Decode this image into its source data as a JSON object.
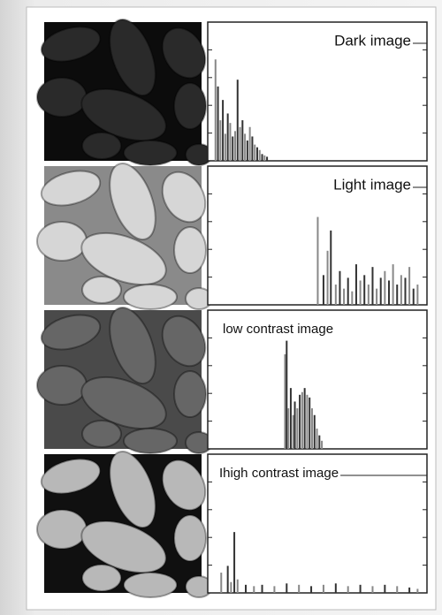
{
  "histograms": [
    {
      "label": "Dark image",
      "x": [
        3,
        6,
        9,
        12,
        15,
        18,
        21,
        24,
        27,
        30,
        33,
        36,
        39,
        42,
        45,
        48,
        51,
        54,
        57,
        60,
        63,
        66
      ],
      "values": [
        75,
        55,
        30,
        45,
        20,
        35,
        28,
        18,
        22,
        60,
        25,
        30,
        20,
        15,
        25,
        18,
        12,
        10,
        8,
        5,
        4,
        3
      ]
    },
    {
      "label": "Light image",
      "x": [
        128,
        135,
        140,
        144,
        150,
        155,
        160,
        165,
        170,
        175,
        180,
        185,
        190,
        195,
        200,
        205,
        210,
        215,
        220,
        225,
        230,
        235,
        240,
        245,
        250
      ],
      "values": [
        65,
        22,
        40,
        55,
        15,
        25,
        12,
        20,
        10,
        30,
        18,
        22,
        15,
        28,
        12,
        20,
        25,
        18,
        30,
        15,
        22,
        20,
        28,
        12,
        15
      ]
    },
    {
      "label": "low contrast image",
      "x": [
        88,
        90,
        92,
        95,
        98,
        100,
        103,
        106,
        109,
        112,
        115,
        118,
        121,
        124,
        127,
        130,
        133
      ],
      "values": [
        70,
        80,
        30,
        45,
        25,
        35,
        30,
        40,
        42,
        45,
        40,
        38,
        30,
        25,
        15,
        10,
        6
      ]
    },
    {
      "label": "Ihigh contrast image",
      "x": [
        10,
        18,
        22,
        26,
        30,
        40,
        50,
        60,
        75,
        90,
        105,
        120,
        135,
        150,
        165,
        180,
        195,
        210,
        225,
        240,
        250
      ],
      "values": [
        15,
        20,
        8,
        45,
        10,
        6,
        5,
        6,
        5,
        7,
        6,
        5,
        6,
        7,
        5,
        6,
        5,
        6,
        5,
        4,
        3
      ]
    }
  ]
}
